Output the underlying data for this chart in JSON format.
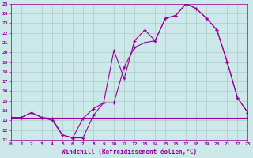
{
  "xlabel": "Windchill (Refroidissement éolien,°C)",
  "xlim": [
    0,
    23
  ],
  "ylim": [
    11,
    25
  ],
  "xticks": [
    0,
    1,
    2,
    3,
    4,
    5,
    6,
    7,
    8,
    9,
    10,
    11,
    12,
    13,
    14,
    15,
    16,
    17,
    18,
    19,
    20,
    21,
    22,
    23
  ],
  "yticks": [
    11,
    12,
    13,
    14,
    15,
    16,
    17,
    18,
    19,
    20,
    21,
    22,
    23,
    24,
    25
  ],
  "bg_color": "#cce8e8",
  "line_color": "#990099",
  "grid_color": "#aacccc",
  "line1_x": [
    0,
    1,
    2,
    3,
    4,
    5,
    6,
    7,
    8,
    9,
    10,
    11,
    12,
    13,
    14,
    15,
    16,
    17,
    18,
    19,
    20,
    21,
    22,
    23
  ],
  "line1_y": [
    13.3,
    13.3,
    13.8,
    13.3,
    13.0,
    11.5,
    11.2,
    13.2,
    14.2,
    14.8,
    20.2,
    17.3,
    21.2,
    22.3,
    21.2,
    23.5,
    23.8,
    25.0,
    24.5,
    23.5,
    22.3,
    19.0,
    15.3,
    13.8
  ],
  "line2_x": [
    0,
    1,
    2,
    3,
    4,
    5,
    6,
    7,
    8,
    9,
    10,
    11,
    12,
    13,
    14,
    15,
    16,
    17,
    18,
    19,
    20,
    21,
    22,
    23
  ],
  "line2_y": [
    13.3,
    13.3,
    13.8,
    13.3,
    13.2,
    11.5,
    11.2,
    11.2,
    13.5,
    14.8,
    14.8,
    18.5,
    20.5,
    21.0,
    21.2,
    23.5,
    23.8,
    25.0,
    24.5,
    23.5,
    22.3,
    19.0,
    15.3,
    13.8
  ],
  "line3_x": [
    0,
    23
  ],
  "line3_y": [
    13.3,
    13.3
  ]
}
